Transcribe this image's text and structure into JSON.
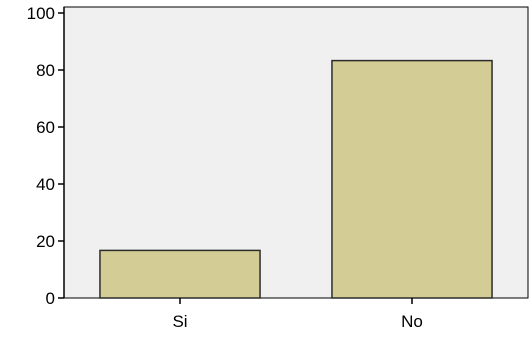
{
  "chart_data": {
    "type": "bar",
    "categories": [
      "Si",
      "No"
    ],
    "values": [
      16.7,
      83.3
    ],
    "title": "",
    "xlabel": "",
    "ylabel": "",
    "ylim": [
      0,
      100
    ],
    "yticks": [
      "0",
      "20",
      "40",
      "60",
      "80",
      "100"
    ],
    "grid": false,
    "legend": "none",
    "colors": {
      "plot_background": "#f0f0f0",
      "bar_fill": "#d3cd95",
      "bar_stroke": "#2b2b2b",
      "axis": "#000000"
    }
  }
}
